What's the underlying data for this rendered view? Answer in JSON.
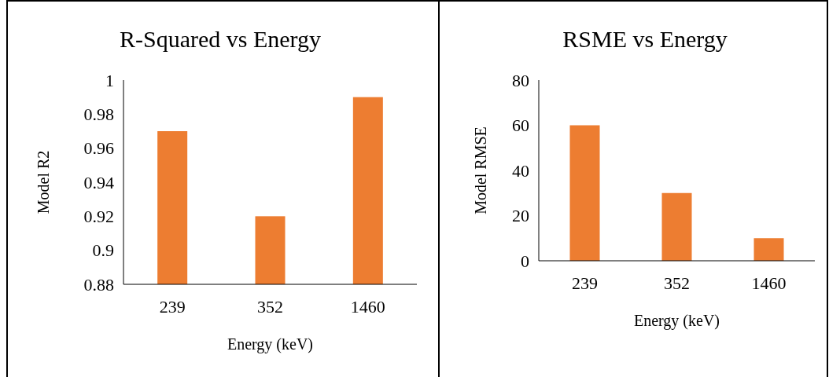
{
  "chart_data": [
    {
      "type": "bar",
      "title": "R-Squared vs Energy",
      "xlabel": "Energy (keV)",
      "ylabel": "Model R2",
      "categories": [
        "239",
        "352",
        "1460"
      ],
      "values": [
        0.97,
        0.92,
        0.99
      ],
      "color": "#ed7d31",
      "ylim": [
        0.88,
        1
      ],
      "yticks": [
        {
          "value": 0.88,
          "label": "0.88"
        },
        {
          "value": 0.9,
          "label": "0.9"
        },
        {
          "value": 0.92,
          "label": "0.92"
        },
        {
          "value": 0.94,
          "label": "0.94"
        },
        {
          "value": 0.96,
          "label": "0.96"
        },
        {
          "value": 0.98,
          "label": "0.98"
        },
        {
          "value": 1,
          "label": "1"
        }
      ],
      "grid": false
    },
    {
      "type": "bar",
      "title": "RSME vs Energy",
      "xlabel": "Energy (keV)",
      "ylabel": "Model RMSE",
      "categories": [
        "239",
        "352",
        "1460"
      ],
      "values": [
        60,
        30,
        10
      ],
      "color": "#ed7d31",
      "ylim": [
        0,
        80
      ],
      "yticks": [
        0,
        20,
        40,
        60,
        80
      ],
      "grid": false
    }
  ]
}
